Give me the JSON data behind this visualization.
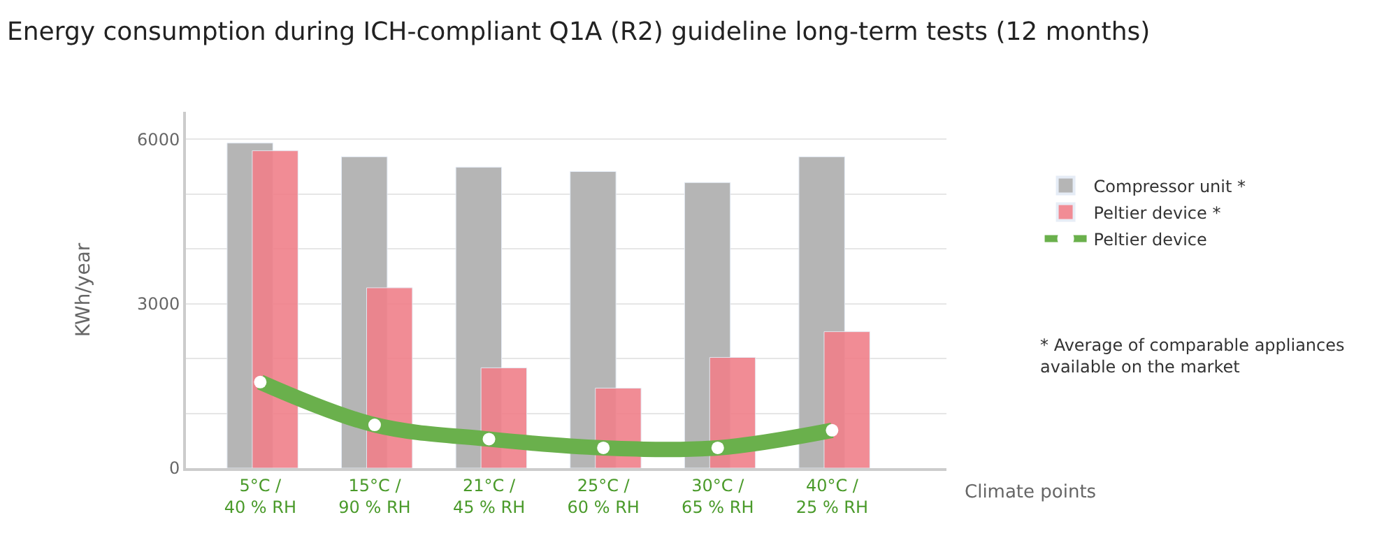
{
  "chart_data": {
    "type": "bar",
    "title": "Energy consumption during ICH-compliant Q1A (R2) guideline long-term tests (12 months)",
    "xlabel": "Climate points",
    "ylabel": "KWh/year",
    "categories": [
      "5°C /\n40 % RH",
      "15°C /\n90 % RH",
      "21°C /\n45 % RH",
      "25°C /\n60 % RH",
      "30°C /\n65 % RH",
      "40°C /\n25 % RH"
    ],
    "series": [
      {
        "name": "Compressor unit *",
        "color": "#b5b5b5",
        "values": [
          5930,
          5680,
          5490,
          5410,
          5210,
          5680
        ]
      },
      {
        "name": "Peltier device *",
        "color": "#f0808a",
        "values": [
          5790,
          3290,
          1830,
          1460,
          2020,
          2490
        ]
      },
      {
        "name": "Peltier device",
        "type": "line",
        "color": "#6ab04c",
        "marker": "circle",
        "values": [
          1570,
          790,
          530,
          370,
          370,
          690
        ]
      }
    ],
    "ylim": [
      0,
      6500
    ],
    "yticks": [
      0,
      {
        "value": 1000,
        "label": null
      },
      {
        "value": 2000,
        "label": null
      },
      3000,
      {
        "value": 4000,
        "label": null
      },
      {
        "value": 5000,
        "label": null
      },
      6000
    ],
    "grid": "y",
    "legend": "right",
    "annotations": [
      "* Average of comparable appliances\navailable on the market"
    ]
  }
}
